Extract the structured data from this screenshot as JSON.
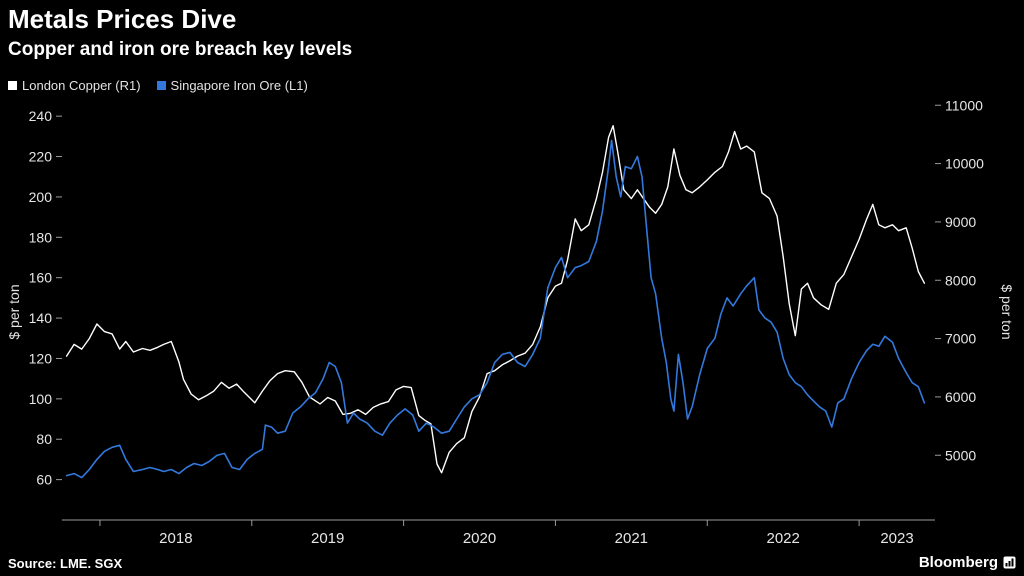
{
  "footer": {
    "source": "Source: LME. SGX",
    "brand": "Bloomberg"
  },
  "chart_data": {
    "type": "line",
    "title": "Metals Prices Dive",
    "subtitle": "Copper and iron ore breach key levels",
    "background": "#000000",
    "x_domain": [
      2017.75,
      2023.5
    ],
    "x_ticks": [
      2018,
      2019,
      2020,
      2021,
      2022,
      2023
    ],
    "x_tick_labels": [
      "2018",
      "2019",
      "2020",
      "2021",
      "2022",
      "2023"
    ],
    "left_axis": {
      "title": "$ per ton",
      "domain": [
        40,
        248
      ],
      "ticks": [
        60,
        80,
        100,
        120,
        140,
        160,
        180,
        200,
        220,
        240
      ]
    },
    "right_axis": {
      "title": "$ per ton",
      "domain": [
        3890,
        11090
      ],
      "ticks": [
        5000,
        6000,
        7000,
        8000,
        9000,
        10000,
        11000
      ]
    },
    "series": [
      {
        "name": "London Copper (R1)",
        "axis": "right",
        "color": "#ffffff",
        "width": 1.4,
        "points": [
          [
            2017.78,
            6700
          ],
          [
            2017.83,
            6900
          ],
          [
            2017.88,
            6820
          ],
          [
            2017.93,
            7000
          ],
          [
            2017.98,
            7250
          ],
          [
            2018.03,
            7120
          ],
          [
            2018.08,
            7080
          ],
          [
            2018.13,
            6820
          ],
          [
            2018.17,
            6950
          ],
          [
            2018.22,
            6770
          ],
          [
            2018.28,
            6830
          ],
          [
            2018.33,
            6800
          ],
          [
            2018.38,
            6850
          ],
          [
            2018.42,
            6900
          ],
          [
            2018.47,
            6950
          ],
          [
            2018.52,
            6600
          ],
          [
            2018.55,
            6300
          ],
          [
            2018.6,
            6050
          ],
          [
            2018.65,
            5950
          ],
          [
            2018.7,
            6020
          ],
          [
            2018.75,
            6100
          ],
          [
            2018.8,
            6250
          ],
          [
            2018.85,
            6150
          ],
          [
            2018.9,
            6220
          ],
          [
            2018.95,
            6080
          ],
          [
            2019.02,
            5900
          ],
          [
            2019.07,
            6100
          ],
          [
            2019.12,
            6280
          ],
          [
            2019.17,
            6400
          ],
          [
            2019.22,
            6450
          ],
          [
            2019.28,
            6430
          ],
          [
            2019.33,
            6250
          ],
          [
            2019.38,
            6000
          ],
          [
            2019.45,
            5880
          ],
          [
            2019.5,
            5990
          ],
          [
            2019.55,
            5930
          ],
          [
            2019.6,
            5700
          ],
          [
            2019.65,
            5720
          ],
          [
            2019.7,
            5780
          ],
          [
            2019.75,
            5700
          ],
          [
            2019.8,
            5820
          ],
          [
            2019.85,
            5880
          ],
          [
            2019.9,
            5920
          ],
          [
            2019.95,
            6120
          ],
          [
            2020.0,
            6180
          ],
          [
            2020.05,
            6160
          ],
          [
            2020.1,
            5680
          ],
          [
            2020.14,
            5600
          ],
          [
            2020.18,
            5540
          ],
          [
            2020.22,
            4850
          ],
          [
            2020.25,
            4700
          ],
          [
            2020.3,
            5050
          ],
          [
            2020.35,
            5200
          ],
          [
            2020.4,
            5300
          ],
          [
            2020.45,
            5750
          ],
          [
            2020.5,
            6000
          ],
          [
            2020.55,
            6400
          ],
          [
            2020.6,
            6450
          ],
          [
            2020.65,
            6550
          ],
          [
            2020.7,
            6620
          ],
          [
            2020.75,
            6700
          ],
          [
            2020.8,
            6750
          ],
          [
            2020.85,
            6900
          ],
          [
            2020.9,
            7200
          ],
          [
            2020.95,
            7700
          ],
          [
            2021.0,
            7900
          ],
          [
            2021.04,
            7950
          ],
          [
            2021.08,
            8350
          ],
          [
            2021.13,
            9050
          ],
          [
            2021.17,
            8850
          ],
          [
            2021.22,
            8950
          ],
          [
            2021.27,
            9400
          ],
          [
            2021.31,
            9850
          ],
          [
            2021.35,
            10450
          ],
          [
            2021.38,
            10650
          ],
          [
            2021.41,
            10200
          ],
          [
            2021.45,
            9550
          ],
          [
            2021.5,
            9400
          ],
          [
            2021.54,
            9550
          ],
          [
            2021.58,
            9400
          ],
          [
            2021.62,
            9250
          ],
          [
            2021.66,
            9150
          ],
          [
            2021.7,
            9300
          ],
          [
            2021.74,
            9600
          ],
          [
            2021.78,
            10250
          ],
          [
            2021.82,
            9800
          ],
          [
            2021.86,
            9550
          ],
          [
            2021.9,
            9500
          ],
          [
            2021.95,
            9600
          ],
          [
            2022.0,
            9720
          ],
          [
            2022.05,
            9850
          ],
          [
            2022.1,
            9950
          ],
          [
            2022.14,
            10200
          ],
          [
            2022.18,
            10550
          ],
          [
            2022.22,
            10250
          ],
          [
            2022.26,
            10300
          ],
          [
            2022.31,
            10200
          ],
          [
            2022.36,
            9500
          ],
          [
            2022.41,
            9400
          ],
          [
            2022.46,
            9100
          ],
          [
            2022.5,
            8400
          ],
          [
            2022.54,
            7600
          ],
          [
            2022.58,
            7050
          ],
          [
            2022.62,
            7850
          ],
          [
            2022.66,
            7950
          ],
          [
            2022.7,
            7700
          ],
          [
            2022.75,
            7580
          ],
          [
            2022.8,
            7500
          ],
          [
            2022.85,
            7950
          ],
          [
            2022.9,
            8100
          ],
          [
            2022.95,
            8400
          ],
          [
            2023.0,
            8700
          ],
          [
            2023.05,
            9050
          ],
          [
            2023.09,
            9300
          ],
          [
            2023.13,
            8950
          ],
          [
            2023.17,
            8900
          ],
          [
            2023.22,
            8950
          ],
          [
            2023.26,
            8850
          ],
          [
            2023.31,
            8900
          ],
          [
            2023.35,
            8550
          ],
          [
            2023.39,
            8150
          ],
          [
            2023.43,
            7950
          ]
        ]
      },
      {
        "name": "Singapore Iron Ore (L1)",
        "axis": "left",
        "color": "#3379dd",
        "width": 1.6,
        "points": [
          [
            2017.78,
            62
          ],
          [
            2017.83,
            63
          ],
          [
            2017.88,
            61
          ],
          [
            2017.93,
            65
          ],
          [
            2017.98,
            70
          ],
          [
            2018.03,
            74
          ],
          [
            2018.08,
            76
          ],
          [
            2018.13,
            77
          ],
          [
            2018.17,
            70
          ],
          [
            2018.22,
            64
          ],
          [
            2018.28,
            65
          ],
          [
            2018.33,
            66
          ],
          [
            2018.38,
            65
          ],
          [
            2018.42,
            64
          ],
          [
            2018.47,
            65
          ],
          [
            2018.52,
            63
          ],
          [
            2018.57,
            66
          ],
          [
            2018.62,
            68
          ],
          [
            2018.67,
            67
          ],
          [
            2018.72,
            69
          ],
          [
            2018.77,
            72
          ],
          [
            2018.82,
            73
          ],
          [
            2018.87,
            66
          ],
          [
            2018.92,
            65
          ],
          [
            2018.97,
            70
          ],
          [
            2019.02,
            73
          ],
          [
            2019.07,
            75
          ],
          [
            2019.09,
            87
          ],
          [
            2019.13,
            86
          ],
          [
            2019.17,
            83
          ],
          [
            2019.22,
            84
          ],
          [
            2019.27,
            93
          ],
          [
            2019.32,
            96
          ],
          [
            2019.37,
            100
          ],
          [
            2019.42,
            103
          ],
          [
            2019.47,
            110
          ],
          [
            2019.51,
            118
          ],
          [
            2019.55,
            116
          ],
          [
            2019.59,
            108
          ],
          [
            2019.63,
            88
          ],
          [
            2019.67,
            93
          ],
          [
            2019.71,
            90
          ],
          [
            2019.76,
            88
          ],
          [
            2019.81,
            84
          ],
          [
            2019.86,
            82
          ],
          [
            2019.91,
            88
          ],
          [
            2019.96,
            92
          ],
          [
            2020.01,
            95
          ],
          [
            2020.06,
            92
          ],
          [
            2020.1,
            84
          ],
          [
            2020.15,
            88
          ],
          [
            2020.2,
            86
          ],
          [
            2020.25,
            83
          ],
          [
            2020.3,
            84
          ],
          [
            2020.35,
            90
          ],
          [
            2020.4,
            96
          ],
          [
            2020.45,
            100
          ],
          [
            2020.5,
            102
          ],
          [
            2020.55,
            108
          ],
          [
            2020.6,
            118
          ],
          [
            2020.65,
            122
          ],
          [
            2020.7,
            123
          ],
          [
            2020.75,
            118
          ],
          [
            2020.8,
            116
          ],
          [
            2020.85,
            122
          ],
          [
            2020.9,
            130
          ],
          [
            2020.95,
            155
          ],
          [
            2021.0,
            165
          ],
          [
            2021.04,
            170
          ],
          [
            2021.08,
            160
          ],
          [
            2021.13,
            165
          ],
          [
            2021.17,
            166
          ],
          [
            2021.22,
            168
          ],
          [
            2021.27,
            178
          ],
          [
            2021.31,
            193
          ],
          [
            2021.35,
            215
          ],
          [
            2021.37,
            228
          ],
          [
            2021.4,
            210
          ],
          [
            2021.43,
            200
          ],
          [
            2021.46,
            215
          ],
          [
            2021.5,
            214
          ],
          [
            2021.54,
            220
          ],
          [
            2021.57,
            210
          ],
          [
            2021.6,
            185
          ],
          [
            2021.63,
            160
          ],
          [
            2021.66,
            152
          ],
          [
            2021.7,
            130
          ],
          [
            2021.73,
            118
          ],
          [
            2021.76,
            100
          ],
          [
            2021.78,
            94
          ],
          [
            2021.81,
            122
          ],
          [
            2021.84,
            108
          ],
          [
            2021.87,
            90
          ],
          [
            2021.9,
            96
          ],
          [
            2021.95,
            112
          ],
          [
            2022.0,
            125
          ],
          [
            2022.05,
            130
          ],
          [
            2022.09,
            142
          ],
          [
            2022.13,
            150
          ],
          [
            2022.17,
            146
          ],
          [
            2022.22,
            152
          ],
          [
            2022.26,
            156
          ],
          [
            2022.31,
            160
          ],
          [
            2022.34,
            144
          ],
          [
            2022.38,
            140
          ],
          [
            2022.42,
            138
          ],
          [
            2022.46,
            133
          ],
          [
            2022.5,
            120
          ],
          [
            2022.54,
            112
          ],
          [
            2022.58,
            108
          ],
          [
            2022.62,
            106
          ],
          [
            2022.66,
            102
          ],
          [
            2022.7,
            99
          ],
          [
            2022.74,
            96
          ],
          [
            2022.78,
            94
          ],
          [
            2022.82,
            86
          ],
          [
            2022.86,
            98
          ],
          [
            2022.9,
            100
          ],
          [
            2022.95,
            110
          ],
          [
            2023.0,
            118
          ],
          [
            2023.05,
            124
          ],
          [
            2023.09,
            127
          ],
          [
            2023.13,
            126
          ],
          [
            2023.17,
            131
          ],
          [
            2023.22,
            128
          ],
          [
            2023.26,
            120
          ],
          [
            2023.31,
            113
          ],
          [
            2023.35,
            108
          ],
          [
            2023.39,
            106
          ],
          [
            2023.43,
            98
          ]
        ]
      }
    ]
  }
}
